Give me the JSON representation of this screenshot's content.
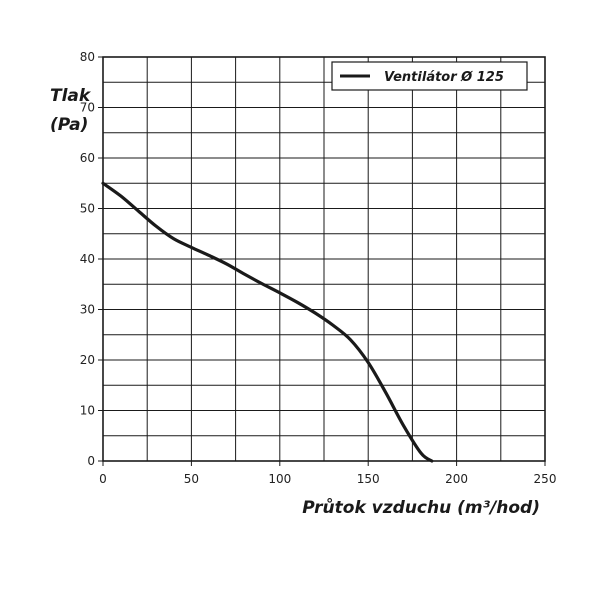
{
  "chart_data": {
    "type": "line",
    "title": "",
    "ylabel_line1": "Tlak",
    "ylabel_line2": "(Pa)",
    "xlabel": "Průtok vzduchu (m³/hod)",
    "xlim": [
      0,
      250
    ],
    "ylim": [
      0,
      80
    ],
    "x_ticks": [
      0,
      50,
      100,
      150,
      200,
      250
    ],
    "y_ticks": [
      0,
      10,
      20,
      30,
      40,
      50,
      60,
      70,
      80
    ],
    "grid": true,
    "legend_position": "top-right",
    "series": [
      {
        "name": "Ventilátor Ø 125",
        "color": "#1a1a1a",
        "x": [
          0,
          10,
          20,
          30,
          40,
          50,
          60,
          70,
          80,
          90,
          100,
          110,
          120,
          130,
          140,
          150,
          160,
          170,
          180,
          186
        ],
        "y": [
          55,
          52.5,
          49.5,
          46.5,
          44,
          42.3,
          40.7,
          39,
          37,
          35.1,
          33.3,
          31.4,
          29.3,
          26.9,
          24,
          19.5,
          13.5,
          7,
          1.5,
          0
        ]
      }
    ]
  }
}
